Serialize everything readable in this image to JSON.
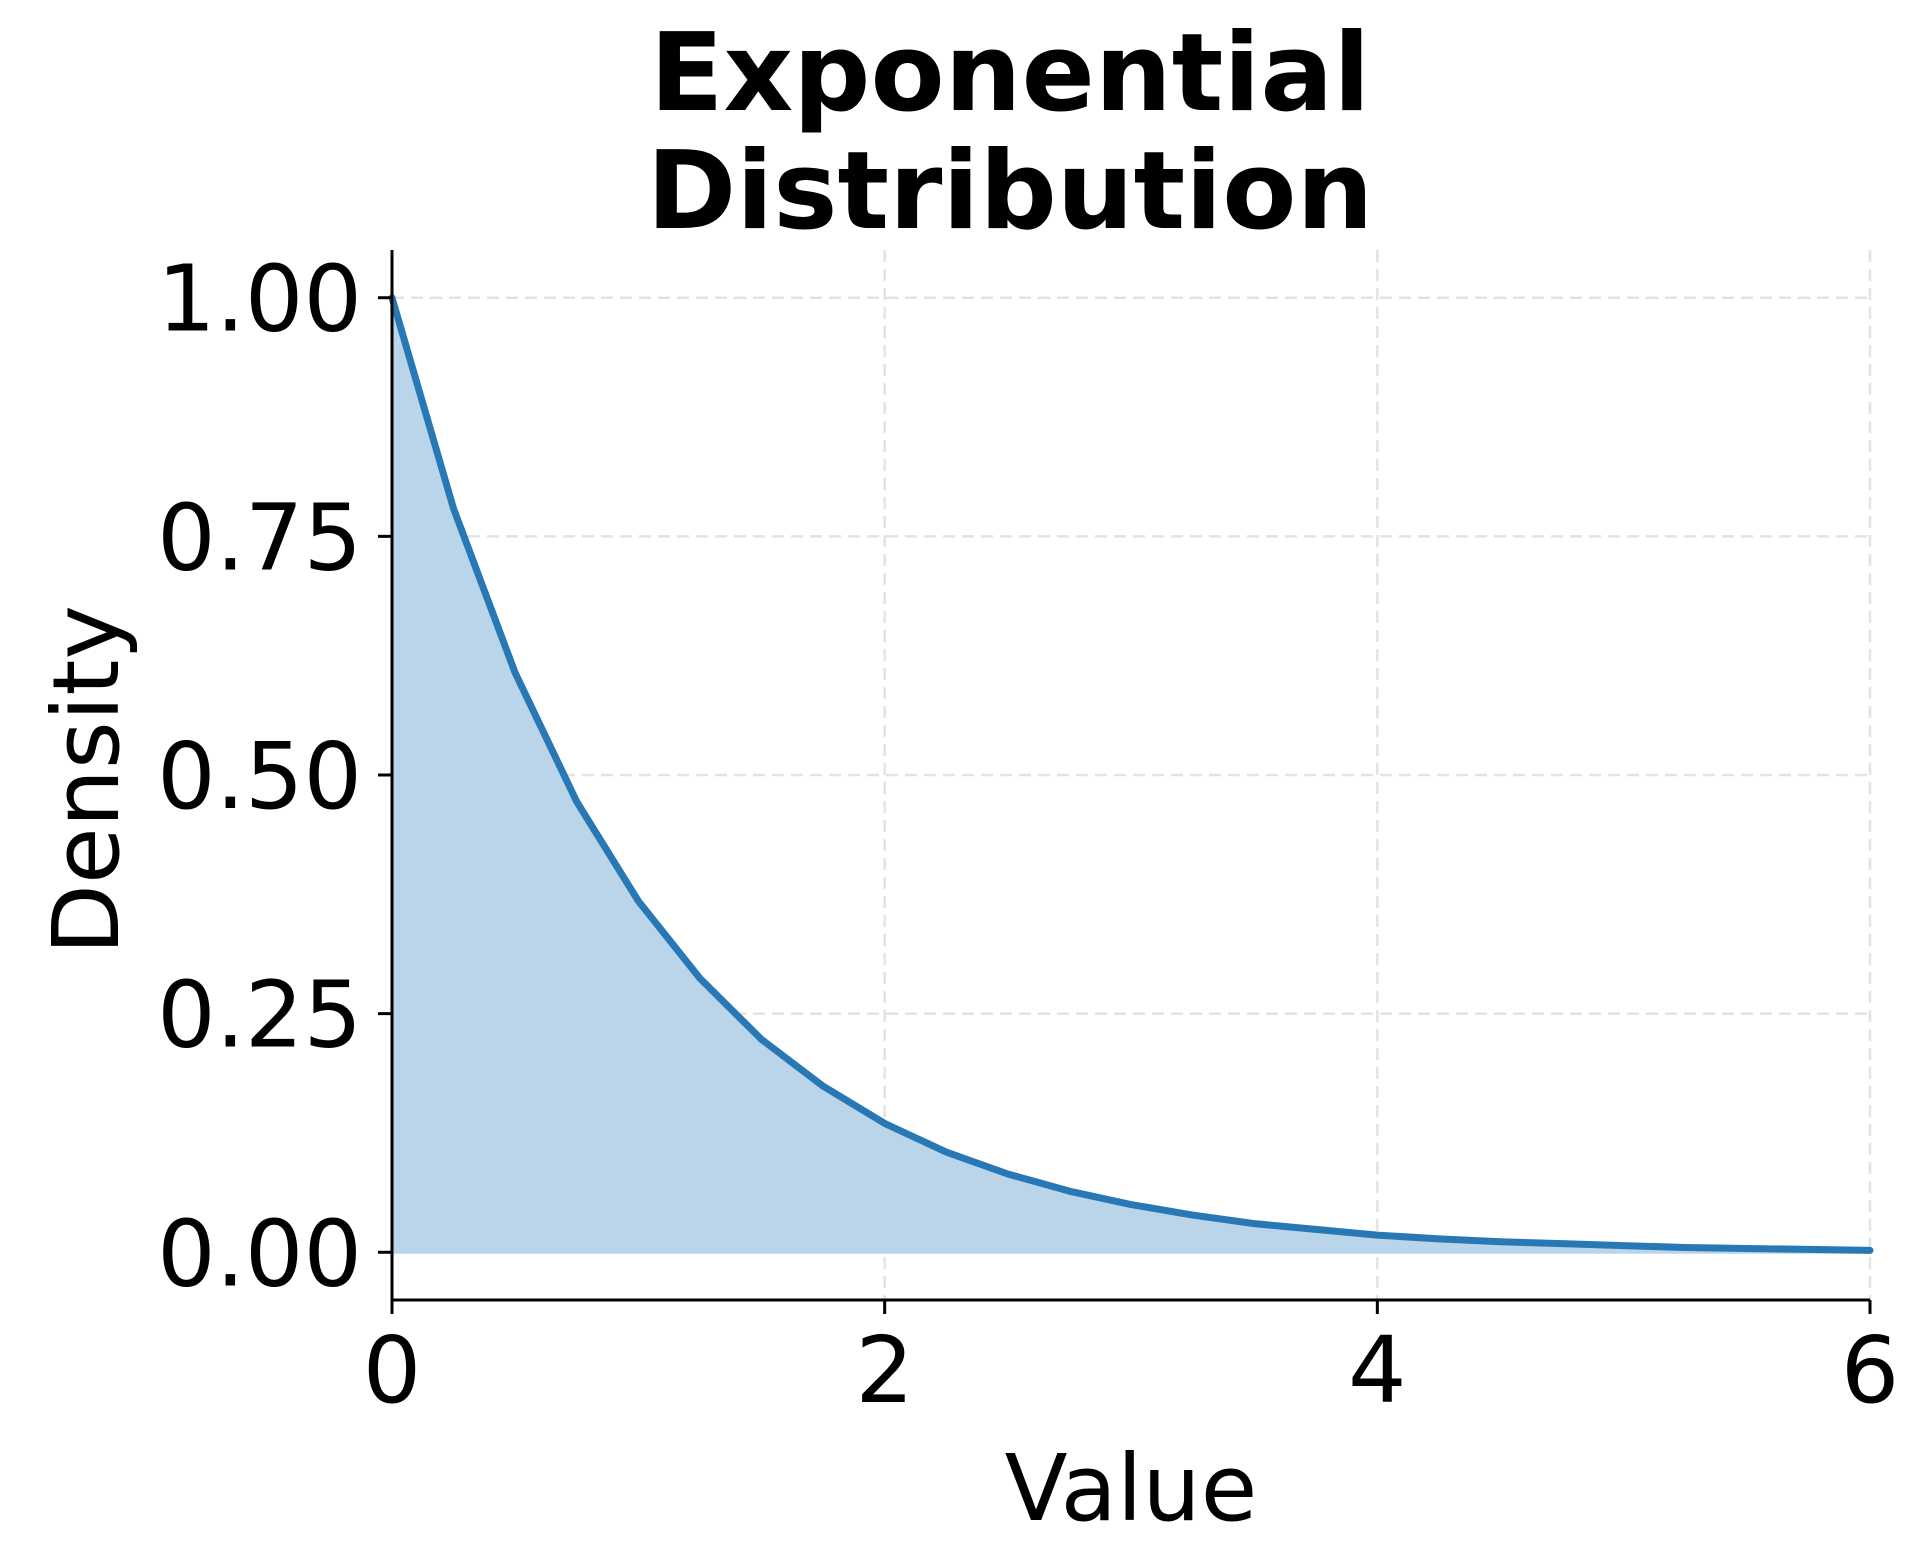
{
  "chart_data": {
    "type": "area",
    "title_lines": [
      "Exponential",
      "Distribution"
    ],
    "xlabel": "Value",
    "ylabel": "Density",
    "xlim": [
      0,
      6
    ],
    "ylim": [
      -0.05,
      1.05
    ],
    "x_ticks": [
      0,
      2,
      4,
      6
    ],
    "x_tick_labels": [
      "0",
      "2",
      "4",
      "6"
    ],
    "y_ticks": [
      0.0,
      0.25,
      0.5,
      0.75,
      1.0
    ],
    "y_tick_labels": [
      "0.00",
      "0.25",
      "0.50",
      "0.75",
      "1.00"
    ],
    "grid": true,
    "legend": "none",
    "series": [
      {
        "x": [
          0.0,
          0.25,
          0.5,
          0.75,
          1.0,
          1.25,
          1.5,
          1.75,
          2.0,
          2.25,
          2.5,
          2.75,
          3.0,
          3.25,
          3.5,
          3.75,
          4.0,
          4.25,
          4.5,
          4.75,
          5.0,
          5.25,
          5.5,
          5.75,
          6.0
        ],
        "y": [
          1.0,
          0.779,
          0.607,
          0.472,
          0.368,
          0.287,
          0.223,
          0.174,
          0.135,
          0.105,
          0.082,
          0.064,
          0.05,
          0.039,
          0.03,
          0.024,
          0.018,
          0.014,
          0.011,
          0.009,
          0.007,
          0.005,
          0.004,
          0.003,
          0.002
        ],
        "line_color": "#2878b5",
        "fill_color": "#bad5e9"
      }
    ]
  }
}
